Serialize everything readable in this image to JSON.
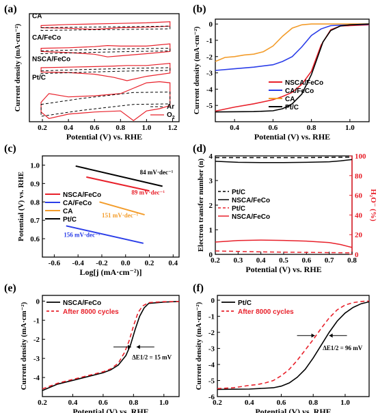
{
  "chart_data": [
    {
      "panel": "(a)",
      "type": "line",
      "xlabel": "Potential (V) vs. RHE",
      "ylabel": "Current density (mA·cm⁻²)",
      "xlim": [
        0.1,
        1.25
      ],
      "xticks": [
        "0.2",
        "0.4",
        "0.6",
        "0.8",
        "1.0",
        "1.2"
      ],
      "sample_labels": [
        "CA",
        "CA/FeCo",
        "NSCA/FeCo",
        "Pt/C"
      ],
      "legend": [
        {
          "name": "Ar",
          "color": "#000000",
          "style": "dash"
        },
        {
          "name": "O",
          "sub": "2",
          "color": "#e8202a",
          "style": "solid"
        }
      ],
      "series": [
        {
          "name": "CA O2",
          "color": "#e8202a",
          "x": [
            0.19,
            0.4,
            0.6,
            0.8,
            1.0,
            1.18
          ],
          "upper": [
            8.9,
            9.0,
            9.05,
            9.1,
            9.15,
            9.25
          ],
          "lower": [
            8.7,
            8.65,
            8.55,
            8.7,
            8.75,
            8.85
          ]
        },
        {
          "name": "CA/FeCo O2",
          "color": "#e8202a",
          "x": [
            0.19,
            0.4,
            0.6,
            0.7,
            0.8,
            1.0,
            1.18
          ],
          "upper": [
            6.8,
            6.85,
            6.95,
            7.05,
            7.0,
            7.0,
            7.2
          ],
          "lower": [
            6.5,
            6.4,
            6.25,
            6.0,
            6.1,
            6.3,
            6.5
          ]
        },
        {
          "name": "NSCA/FeCo O2",
          "color": "#e8202a",
          "x": [
            0.19,
            0.4,
            0.6,
            0.75,
            0.85,
            1.0,
            1.18
          ],
          "upper": [
            5.0,
            5.05,
            5.1,
            5.15,
            5.2,
            5.2,
            5.4
          ],
          "lower": [
            4.6,
            4.55,
            4.4,
            4.1,
            3.8,
            4.2,
            4.5
          ]
        },
        {
          "name": "Pt/C O2",
          "color": "#e8202a",
          "x": [
            0.19,
            0.25,
            0.4,
            0.6,
            0.8,
            0.9,
            1.0,
            1.1,
            1.18
          ],
          "upper": [
            1.8,
            2.6,
            2.3,
            2.4,
            2.6,
            3.1,
            3.6,
            3.7,
            3.6
          ],
          "lower": [
            0.9,
            0.3,
            0.7,
            0.9,
            1.0,
            0.1,
            1.0,
            1.2,
            1.5
          ]
        }
      ]
    },
    {
      "panel": "(b)",
      "type": "line",
      "xlabel": "Potential (V) vs. RHE",
      "ylabel": "Current density (mA·cm⁻²)",
      "xlim": [
        0.3,
        1.1
      ],
      "ylim": [
        -6,
        0.3
      ],
      "xticks": [
        0.4,
        0.6,
        0.8,
        1.0
      ],
      "yticks": [
        0,
        -1,
        -2,
        -3,
        -4,
        -5
      ],
      "series": [
        {
          "name": "NSCA/FeCo",
          "color": "#e8202a",
          "x": [
            0.3,
            0.4,
            0.5,
            0.6,
            0.65,
            0.7,
            0.75,
            0.8,
            0.85,
            0.9,
            0.95,
            1.0,
            1.1
          ],
          "y": [
            -5.35,
            -5.1,
            -4.9,
            -4.65,
            -4.45,
            -4.2,
            -3.7,
            -2.9,
            -1.3,
            -0.35,
            -0.12,
            -0.1,
            -0.05
          ]
        },
        {
          "name": "CA/FeCo",
          "color": "#2a3de8",
          "x": [
            0.3,
            0.4,
            0.5,
            0.6,
            0.65,
            0.7,
            0.75,
            0.8,
            0.85,
            0.9,
            1.0,
            1.1
          ],
          "y": [
            -2.85,
            -2.75,
            -2.65,
            -2.5,
            -2.3,
            -2.0,
            -1.4,
            -0.7,
            -0.3,
            -0.1,
            -0.05,
            -0.02
          ]
        },
        {
          "name": "CA",
          "color": "#f39c2a",
          "x": [
            0.3,
            0.35,
            0.4,
            0.45,
            0.5,
            0.55,
            0.6,
            0.65,
            0.7,
            0.75,
            0.8,
            0.9,
            1.1
          ],
          "y": [
            -2.3,
            -2.05,
            -2.0,
            -1.9,
            -1.85,
            -1.7,
            -1.35,
            -0.75,
            -0.25,
            -0.05,
            0.0,
            0.0,
            0.0
          ]
        },
        {
          "name": "Pt/C",
          "color": "#000000",
          "x": [
            0.3,
            0.5,
            0.6,
            0.65,
            0.7,
            0.75,
            0.8,
            0.83,
            0.86,
            0.9,
            0.95,
            1.0,
            1.1
          ],
          "y": [
            -5.4,
            -5.38,
            -5.33,
            -5.2,
            -4.9,
            -4.3,
            -3.1,
            -2.1,
            -1.1,
            -0.4,
            -0.12,
            -0.05,
            0.0
          ]
        }
      ]
    },
    {
      "panel": "(c)",
      "type": "line",
      "xlabel": "Log[j (mA·cm⁻²)]",
      "ylabel": "Potential (V) vs. RHE",
      "xlim": [
        -0.7,
        0.45
      ],
      "ylim": [
        0.5,
        1.05
      ],
      "xticks": [
        -0.6,
        -0.4,
        -0.2,
        0.0,
        0.2,
        0.4
      ],
      "yticks": [
        0.6,
        0.7,
        0.8,
        0.9,
        1.0
      ],
      "annotations": [
        "84 mV·dec⁻¹",
        "89 mV·dec⁻¹",
        "151 mV·dec⁻¹",
        "156 mV·dec⁻¹"
      ],
      "series": [
        {
          "name": "NSCA/FeCo",
          "color": "#e8202a",
          "x": [
            -0.33,
            0.2
          ],
          "y": [
            0.935,
            0.86
          ]
        },
        {
          "name": "CA/FeCo",
          "color": "#2a3de8",
          "x": [
            -0.5,
            0.15
          ],
          "y": [
            0.67,
            0.575
          ]
        },
        {
          "name": "CA",
          "color": "#f39c2a",
          "x": [
            -0.22,
            0.16
          ],
          "y": [
            0.8,
            0.73
          ]
        },
        {
          "name": "Pt/C",
          "color": "#000000",
          "x": [
            -0.42,
            0.31
          ],
          "y": [
            0.995,
            0.885
          ]
        }
      ]
    },
    {
      "panel": "(d)",
      "type": "line",
      "xlabel": "Potential (V) vs. RHE",
      "ylabel": "Electron transfer number (n)",
      "y2label": "H₂O⁻ (%)",
      "xlim": [
        0.2,
        0.8
      ],
      "ylim": [
        0,
        4
      ],
      "y2lim": [
        0,
        100
      ],
      "xticks": [
        0.2,
        0.3,
        0.4,
        0.5,
        0.6,
        0.7,
        0.8
      ],
      "yticks": [
        0,
        1,
        2,
        3,
        4
      ],
      "y2ticks": [
        0,
        20,
        40,
        60,
        80,
        100
      ],
      "legend": [
        {
          "name": "Pt/C",
          "color": "#000000",
          "style": "dash"
        },
        {
          "name": "NSCA/FeCo",
          "color": "#000000",
          "style": "solid"
        },
        {
          "name": "Pt/C",
          "color": "#e8202a",
          "style": "dash"
        },
        {
          "name": "NSCA/FeCo",
          "color": "#e8202a",
          "style": "solid"
        }
      ],
      "series": [
        {
          "name": "Pt/C n",
          "color": "#000000",
          "style": "dash",
          "x": [
            0.2,
            0.4,
            0.6,
            0.8
          ],
          "y": [
            3.93,
            3.93,
            3.93,
            3.95
          ]
        },
        {
          "name": "NSCA/FeCo n",
          "color": "#000000",
          "style": "solid",
          "x": [
            0.2,
            0.3,
            0.4,
            0.5,
            0.6,
            0.7,
            0.75,
            0.8
          ],
          "y": [
            3.78,
            3.74,
            3.73,
            3.73,
            3.74,
            3.76,
            3.8,
            3.85
          ]
        },
        {
          "name": "Pt/C H2O2",
          "color": "#e8202a",
          "style": "dash",
          "axis": "y2",
          "x": [
            0.2,
            0.4,
            0.6,
            0.8
          ],
          "y": [
            3.5,
            2.5,
            2.0,
            1.5
          ]
        },
        {
          "name": "NSCA/FeCo H2O2",
          "color": "#e8202a",
          "style": "solid",
          "axis": "y2",
          "x": [
            0.2,
            0.3,
            0.4,
            0.5,
            0.6,
            0.7,
            0.75,
            0.8
          ],
          "y": [
            12.5,
            14.0,
            14.5,
            14.2,
            13.5,
            12.0,
            10.0,
            7.0
          ]
        }
      ]
    },
    {
      "panel": "(e)",
      "type": "line",
      "xlabel": "Potential (V) vs. RHE",
      "ylabel": "Current density (mA·cm⁻²)",
      "xlim": [
        0.2,
        1.1
      ],
      "ylim": [
        -5,
        0.3
      ],
      "xticks": [
        0.2,
        0.4,
        0.6,
        0.8,
        1.0
      ],
      "yticks": [
        0,
        -1,
        -2,
        -3,
        -4
      ],
      "annotation": "ΔE1/2 = 15 mV",
      "series": [
        {
          "name": "NSCA/FeCo",
          "color": "#000000",
          "style": "solid",
          "x": [
            0.2,
            0.3,
            0.4,
            0.5,
            0.6,
            0.65,
            0.7,
            0.75,
            0.78,
            0.81,
            0.84,
            0.87,
            0.9,
            1.0,
            1.1
          ],
          "y": [
            -4.68,
            -4.35,
            -4.15,
            -3.95,
            -3.75,
            -3.6,
            -3.35,
            -2.85,
            -2.3,
            -1.5,
            -0.8,
            -0.35,
            -0.12,
            -0.05,
            -0.02
          ]
        },
        {
          "name": "After 8000 cycles",
          "color": "#e8202a",
          "style": "dash",
          "x": [
            0.2,
            0.3,
            0.4,
            0.5,
            0.6,
            0.65,
            0.7,
            0.74,
            0.77,
            0.8,
            0.83,
            0.86,
            0.9,
            1.0,
            1.1
          ],
          "y": [
            -4.6,
            -4.3,
            -4.1,
            -3.9,
            -3.7,
            -3.55,
            -3.25,
            -2.7,
            -2.1,
            -1.3,
            -0.6,
            -0.25,
            -0.08,
            -0.03,
            -0.02
          ]
        }
      ]
    },
    {
      "panel": "(f)",
      "type": "line",
      "xlabel": "Potential (V) vs. RHE",
      "ylabel": "Current density (mA·cm⁻²)",
      "xlim": [
        0.2,
        1.15
      ],
      "ylim": [
        -6,
        0.3
      ],
      "xticks": [
        0.2,
        0.4,
        0.6,
        0.8,
        1.0
      ],
      "yticks": [
        0,
        -1,
        -2,
        -3,
        -4,
        -5,
        -6
      ],
      "annotation": "ΔE1/2 = 96 mV",
      "series": [
        {
          "name": "Pt/C",
          "color": "#000000",
          "style": "solid",
          "x": [
            0.2,
            0.4,
            0.55,
            0.6,
            0.65,
            0.7,
            0.75,
            0.8,
            0.85,
            0.9,
            0.95,
            1.0,
            1.05,
            1.1,
            1.15
          ],
          "y": [
            -5.55,
            -5.53,
            -5.45,
            -5.35,
            -5.15,
            -4.8,
            -4.3,
            -3.6,
            -2.8,
            -2.0,
            -1.3,
            -0.8,
            -0.45,
            -0.22,
            -0.1
          ]
        },
        {
          "name": "After 8000 cycles",
          "color": "#e8202a",
          "style": "dash",
          "x": [
            0.2,
            0.3,
            0.4,
            0.45,
            0.5,
            0.55,
            0.6,
            0.65,
            0.7,
            0.75,
            0.8,
            0.85,
            0.9,
            0.95,
            1.0,
            1.05,
            1.1,
            1.15
          ],
          "y": [
            -5.5,
            -5.45,
            -5.3,
            -5.25,
            -5.15,
            -5.0,
            -4.7,
            -4.3,
            -3.75,
            -3.1,
            -2.45,
            -1.75,
            -1.1,
            -0.6,
            -0.3,
            -0.15,
            -0.08,
            -0.05
          ]
        }
      ]
    }
  ]
}
